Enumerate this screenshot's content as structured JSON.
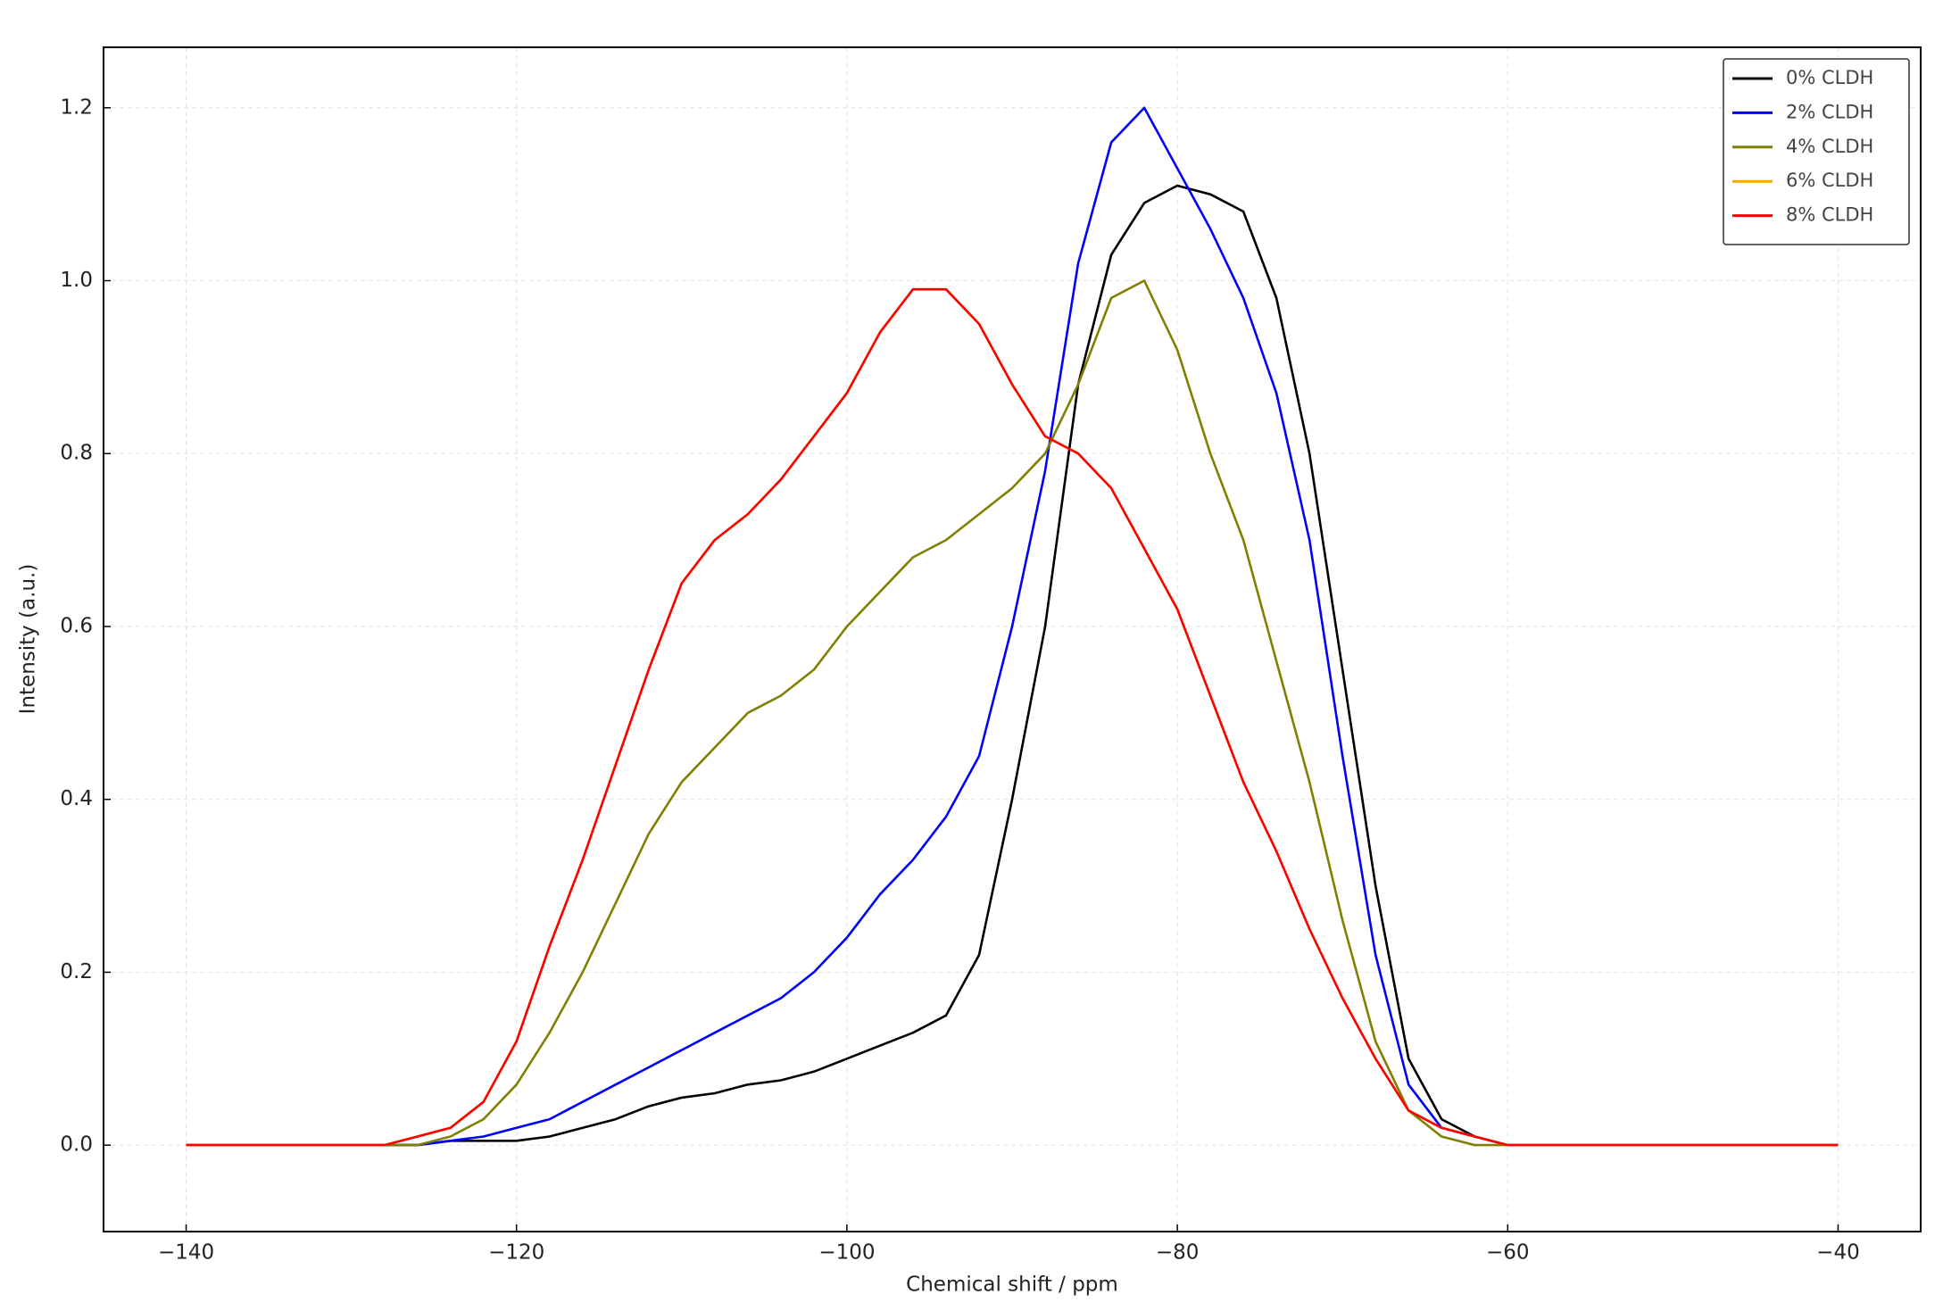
{
  "chart_data": {
    "type": "line",
    "xlabel": "Chemical shift / ppm",
    "ylabel": "Intensity (a.u.)",
    "x": [
      -140,
      -138,
      -136,
      -134,
      -132,
      -130,
      -128,
      -126,
      -124,
      -122,
      -120,
      -118,
      -116,
      -114,
      -112,
      -110,
      -108,
      -106,
      -104,
      -102,
      -100,
      -98,
      -96,
      -94,
      -92,
      -90,
      -88,
      -86,
      -84,
      -82,
      -80,
      -78,
      -76,
      -74,
      -72,
      -70,
      -68,
      -66,
      -64,
      -62,
      -60,
      -58,
      -56,
      -54,
      -52,
      -50,
      -48,
      -46,
      -44,
      -42,
      -40
    ],
    "series": [
      {
        "name": "0% CLDH",
        "color": "#000000",
        "values": [
          0,
          0,
          0,
          0,
          0,
          0,
          0,
          0,
          0.005,
          0.005,
          0.005,
          0.01,
          0.02,
          0.03,
          0.045,
          0.055,
          0.06,
          0.07,
          0.075,
          0.085,
          0.1,
          0.115,
          0.13,
          0.15,
          0.22,
          0.4,
          0.6,
          0.88,
          1.03,
          1.09,
          1.11,
          1.1,
          1.08,
          0.98,
          0.8,
          0.55,
          0.3,
          0.1,
          0.03,
          0.01,
          0,
          0,
          0,
          0,
          0,
          0,
          0,
          0,
          0,
          0,
          0
        ]
      },
      {
        "name": "2% CLDH",
        "color": "#0000ff",
        "values": [
          0,
          0,
          0,
          0,
          0,
          0,
          0,
          0,
          0.005,
          0.01,
          0.02,
          0.03,
          0.05,
          0.07,
          0.09,
          0.11,
          0.13,
          0.15,
          0.17,
          0.2,
          0.24,
          0.29,
          0.33,
          0.38,
          0.45,
          0.6,
          0.78,
          1.02,
          1.16,
          1.2,
          1.13,
          1.06,
          0.98,
          0.87,
          0.7,
          0.45,
          0.22,
          0.07,
          0.02,
          0.01,
          0,
          0,
          0,
          0,
          0,
          0,
          0,
          0,
          0,
          0,
          0
        ]
      },
      {
        "name": "4% CLDH",
        "color": "#808000",
        "values": [
          0,
          0,
          0,
          0,
          0,
          0,
          0,
          0,
          0.01,
          0.03,
          0.07,
          0.13,
          0.2,
          0.28,
          0.36,
          0.42,
          0.46,
          0.5,
          0.52,
          0.55,
          0.6,
          0.64,
          0.68,
          0.7,
          0.73,
          0.76,
          0.8,
          0.88,
          0.98,
          1.0,
          0.92,
          0.8,
          0.7,
          0.56,
          0.42,
          0.26,
          0.12,
          0.04,
          0.01,
          0,
          0,
          0,
          0,
          0,
          0,
          0,
          0,
          0,
          0,
          0,
          0
        ]
      },
      {
        "name": "6% CLDH",
        "color": "#ffa500",
        "values": [
          0,
          0,
          0,
          0,
          0,
          0,
          0,
          0.01,
          0.02,
          0.05,
          0.12,
          0.23,
          0.33,
          0.44,
          0.55,
          0.65,
          0.7,
          0.73,
          0.77,
          0.82,
          0.87,
          0.94,
          0.99,
          0.99,
          0.95,
          0.88,
          0.82,
          0.8,
          0.76,
          0.69,
          0.62,
          0.52,
          0.42,
          0.34,
          0.25,
          0.17,
          0.1,
          0.04,
          0.02,
          0.01,
          0,
          0,
          0,
          0,
          0,
          0,
          0,
          0,
          0,
          0,
          0
        ]
      },
      {
        "name": "8% CLDH",
        "color": "#ff0000",
        "values": [
          0,
          0,
          0,
          0,
          0,
          0,
          0,
          0.01,
          0.02,
          0.05,
          0.12,
          0.23,
          0.33,
          0.44,
          0.55,
          0.65,
          0.7,
          0.73,
          0.77,
          0.82,
          0.87,
          0.94,
          0.99,
          0.99,
          0.95,
          0.88,
          0.82,
          0.8,
          0.76,
          0.69,
          0.62,
          0.52,
          0.42,
          0.34,
          0.25,
          0.17,
          0.1,
          0.04,
          0.02,
          0.01,
          0,
          0,
          0,
          0,
          0,
          0,
          0,
          0,
          0,
          0,
          0
        ]
      }
    ],
    "xlim": [
      -145,
      -35
    ],
    "ylim": [
      -0.1,
      1.27
    ],
    "xticks": [
      {
        "value": -140,
        "label": "−140"
      },
      {
        "value": -120,
        "label": "−120"
      },
      {
        "value": -100,
        "label": "−100"
      },
      {
        "value": -80,
        "label": "−80"
      },
      {
        "value": -60,
        "label": "−60"
      },
      {
        "value": -40,
        "label": "−40"
      }
    ],
    "yticks": [
      {
        "value": 0,
        "label": "0.0"
      },
      {
        "value": 0.2,
        "label": "0.2"
      },
      {
        "value": 0.4,
        "label": "0.4"
      },
      {
        "value": 0.6,
        "label": "0.6"
      },
      {
        "value": 0.8,
        "label": "0.8"
      },
      {
        "value": 1.0,
        "label": "1.0"
      },
      {
        "value": 1.2,
        "label": "1.2"
      }
    ],
    "grid": true,
    "legend": "upper right"
  }
}
